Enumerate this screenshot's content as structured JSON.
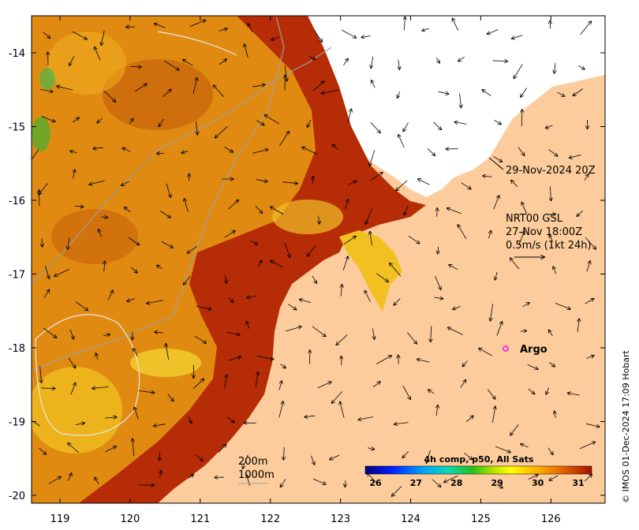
{
  "map": {
    "x_ticks": [
      "119",
      "120",
      "121",
      "122",
      "123",
      "124",
      "125",
      "126"
    ],
    "y_ticks": [
      "-14",
      "-15",
      "-16",
      "-17",
      "-18",
      "-19",
      "-20"
    ]
  },
  "annotations": {
    "timestamp": "29-Nov-2024 20Z",
    "current_source": "NRT00 GSL",
    "current_time": "27-Nov 18:00Z",
    "scale_label": "0.5m/s (1kt 24h)",
    "argo_label": "Argo",
    "depth_200": "200m",
    "depth_1000": "1000m",
    "credit": "© IMOS 01-Dec-2024 17:09 Hobart"
  },
  "colorbar": {
    "title": "4h comp, p50, All Sats",
    "ticks": [
      "26",
      "27",
      "28",
      "29",
      "30",
      "31"
    ]
  },
  "colors": {
    "land": "#fccc9c",
    "sst_warm": "#e08a12",
    "sst_hot": "#b62c06",
    "sst_cool": "#f4c820",
    "argo": "#ff00ff"
  }
}
